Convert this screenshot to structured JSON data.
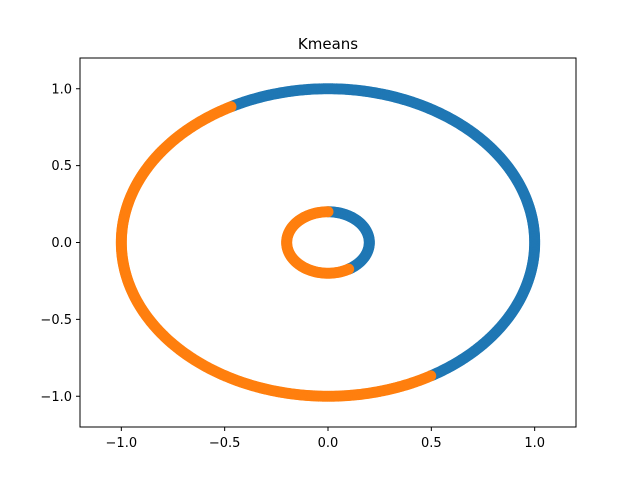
{
  "chart_data": {
    "type": "scatter",
    "title": "Kmeans",
    "xlabel": "",
    "ylabel": "",
    "xlim": [
      -1.2,
      1.2
    ],
    "ylim": [
      -1.2,
      1.2
    ],
    "grid": false,
    "x_ticks": [
      -1.0,
      -0.5,
      0.0,
      0.5,
      1.0
    ],
    "y_ticks": [
      -1.0,
      -0.5,
      0.0,
      0.5,
      1.0
    ],
    "x_tick_labels": [
      "−1.0",
      "−0.5",
      "0.0",
      "0.5",
      "1.0"
    ],
    "y_tick_labels": [
      "−1.0",
      "−0.5",
      "0.0",
      "0.5",
      "1.0"
    ],
    "series": [
      {
        "color": "#1f77b4",
        "arcs": [
          {
            "radius": 1.0,
            "start_deg": -60,
            "end_deg": 118
          },
          {
            "radius": 0.2,
            "start_deg": -60,
            "end_deg": 90
          }
        ]
      },
      {
        "color": "#ff7f0e",
        "arcs": [
          {
            "radius": 1.0,
            "start_deg": 118,
            "end_deg": 300
          },
          {
            "radius": 0.2,
            "start_deg": 90,
            "end_deg": 300
          }
        ]
      }
    ]
  }
}
